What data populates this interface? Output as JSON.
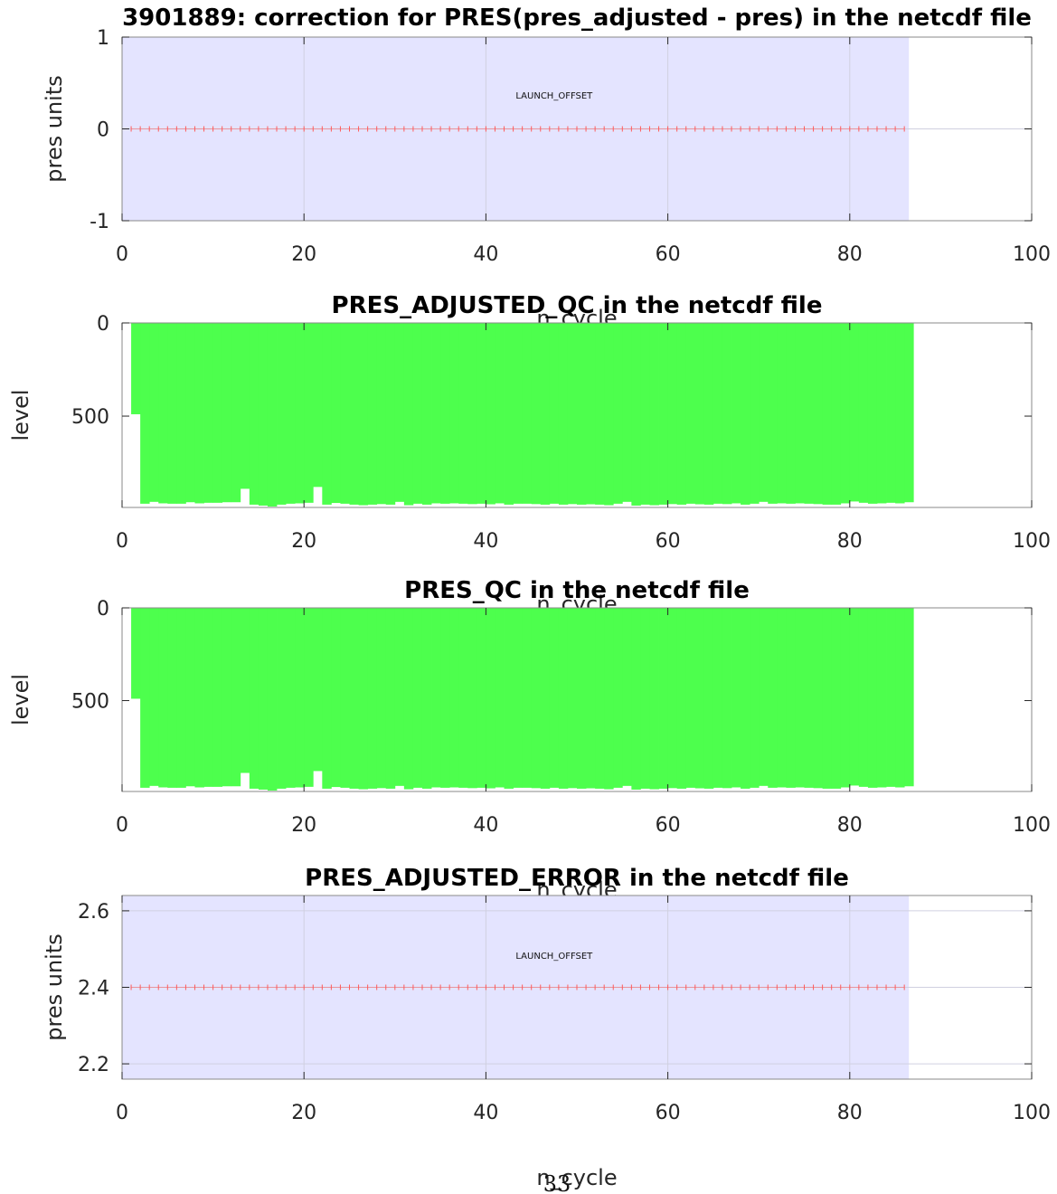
{
  "colors": {
    "background_band": "#e4e4ff",
    "qc_fill": "#4dff4d",
    "marker": "#ff5a5a",
    "axis": "#262626",
    "grid": "#d0d0e0"
  },
  "page_number": "33",
  "chart_data": [
    {
      "type": "line",
      "title": "3901889: correction  for PRES(pres_adjusted - pres) in the netcdf file",
      "xlabel": "n_cycle",
      "ylabel": "pres units",
      "xlim": [
        0,
        100
      ],
      "ylim": [
        -1,
        1
      ],
      "xticks": [
        "0",
        "20",
        "40",
        "60",
        "80",
        "100"
      ],
      "yticks": [
        "-1",
        "0",
        "1"
      ],
      "ytick_values": [
        -1,
        0,
        1
      ],
      "grid": true,
      "shaded_band": {
        "x_range": [
          0,
          86.5
        ],
        "label": "LAUNCH_OFFSET",
        "label_pos": [
          47.5,
          0.33
        ]
      },
      "series": [
        {
          "x_range": [
            1,
            86
          ],
          "x_step": 1,
          "value": 0
        }
      ]
    },
    {
      "type": "area",
      "title": "PRES_ADJUSTED_QC  in the netcdf file",
      "xlabel": "n_cycle",
      "ylabel": "level",
      "xlim": [
        0,
        100
      ],
      "ylim": [
        990,
        0
      ],
      "xticks": [
        "0",
        "20",
        "40",
        "60",
        "80",
        "100"
      ],
      "yticks": [
        "0",
        "500"
      ],
      "ytick_values": [
        0,
        500
      ],
      "grid": false,
      "qc_levels": {
        "x_start": 1,
        "depths": [
          490,
          970,
          960,
          968,
          970,
          970,
          962,
          968,
          965,
          965,
          962,
          962,
          890,
          975,
          980,
          985,
          975,
          970,
          968,
          965,
          880,
          975,
          966,
          970,
          975,
          978,
          975,
          972,
          975,
          960,
          978,
          970,
          975,
          968,
          970,
          968,
          970,
          972,
          970,
          973,
          968,
          975,
          970,
          970,
          972,
          975,
          970,
          975,
          972,
          975,
          973,
          975,
          978,
          970,
          960,
          980,
          975,
          978,
          975,
          972,
          975,
          970,
          973,
          975,
          970,
          972,
          968,
          975,
          970,
          960,
          970,
          968,
          970,
          968,
          970,
          972,
          975,
          975,
          968,
          958,
          965,
          970,
          968,
          965,
          968,
          962
        ]
      }
    },
    {
      "type": "area",
      "title": "PRES_QC  in the netcdf file",
      "xlabel": "n_cycle",
      "ylabel": "level",
      "xlim": [
        0,
        100
      ],
      "ylim": [
        990,
        0
      ],
      "xticks": [
        "0",
        "20",
        "40",
        "60",
        "80",
        "100"
      ],
      "yticks": [
        "0",
        "500"
      ],
      "ytick_values": [
        0,
        500
      ],
      "grid": false,
      "qc_levels": {
        "x_start": 1,
        "depths": [
          490,
          970,
          960,
          968,
          970,
          970,
          962,
          968,
          965,
          965,
          962,
          962,
          890,
          975,
          980,
          985,
          975,
          970,
          968,
          965,
          880,
          975,
          966,
          970,
          975,
          978,
          975,
          972,
          975,
          960,
          978,
          970,
          975,
          968,
          970,
          968,
          970,
          972,
          970,
          973,
          968,
          975,
          970,
          970,
          972,
          975,
          970,
          975,
          972,
          975,
          973,
          975,
          978,
          970,
          960,
          980,
          975,
          978,
          975,
          972,
          975,
          970,
          973,
          975,
          970,
          972,
          968,
          975,
          970,
          960,
          970,
          968,
          970,
          968,
          970,
          972,
          975,
          975,
          968,
          958,
          965,
          970,
          968,
          965,
          968,
          962
        ]
      }
    },
    {
      "type": "line",
      "title": "PRES_ADJUSTED_ERROR  in the netcdf file",
      "xlabel": "n_cycle",
      "ylabel": "pres units",
      "xlim": [
        0,
        100
      ],
      "ylim": [
        2.16,
        2.64
      ],
      "xticks": [
        "0",
        "20",
        "40",
        "60",
        "80",
        "100"
      ],
      "yticks": [
        "2.2",
        "2.4",
        "2.6"
      ],
      "ytick_values": [
        2.2,
        2.4,
        2.6
      ],
      "grid": true,
      "shaded_band": {
        "x_range": [
          0,
          86.5
        ],
        "label": "LAUNCH_OFFSET",
        "label_pos": [
          47.5,
          2.475
        ]
      },
      "series": [
        {
          "x_range": [
            1,
            86
          ],
          "x_step": 1,
          "value": 2.4
        }
      ]
    }
  ]
}
